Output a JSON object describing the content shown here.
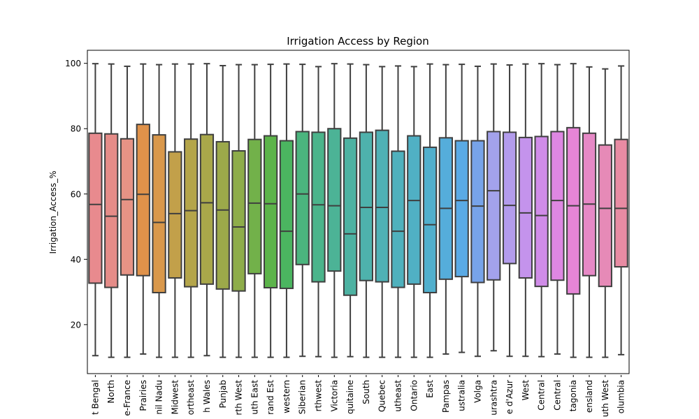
{
  "chart_data": {
    "type": "box",
    "title": "Irrigation Access by Region",
    "xlabel": "",
    "ylabel": "Irrigation_Access_%",
    "ylim": [
      5,
      104
    ],
    "yticks": [
      20,
      40,
      60,
      80,
      100
    ],
    "grid": false,
    "legend": "none",
    "categories": [
      {
        "label": "t Bengal",
        "color": "#e88a8e",
        "whisker_low": 10.5,
        "q1": 32.7,
        "median": 56.8,
        "q3": 78.6,
        "whisker_high": 99.9
      },
      {
        "label": "North",
        "color": "#e58c88",
        "whisker_low": 10.0,
        "q1": 31.4,
        "median": 53.2,
        "q3": 78.4,
        "whisker_high": 99.8
      },
      {
        "label": "e-France",
        "color": "#e69385",
        "whisker_low": 10.0,
        "q1": 35.2,
        "median": 58.3,
        "q3": 76.9,
        "whisker_high": 99.1
      },
      {
        "label": "Prairies",
        "color": "#e0924a",
        "whisker_low": 11.0,
        "q1": 35.0,
        "median": 59.9,
        "q3": 81.3,
        "whisker_high": 99.8
      },
      {
        "label": "nil Nadu",
        "color": "#d9984b",
        "whisker_low": 10.0,
        "q1": 29.8,
        "median": 51.3,
        "q3": 78.1,
        "whisker_high": 99.6
      },
      {
        "label": "Midwest",
        "color": "#c2a04a",
        "whisker_low": 10.0,
        "q1": 34.3,
        "median": 54.0,
        "q3": 72.9,
        "whisker_high": 99.8
      },
      {
        "label": "ortheast",
        "color": "#b4a54a",
        "whisker_low": 10.0,
        "q1": 31.6,
        "median": 54.9,
        "q3": 76.8,
        "whisker_high": 99.8
      },
      {
        "label": "h Wales",
        "color": "#a9a84a",
        "whisker_low": 10.5,
        "q1": 32.4,
        "median": 57.3,
        "q3": 78.2,
        "whisker_high": 99.9
      },
      {
        "label": "Punjab",
        "color": "#9ca94a",
        "whisker_low": 10.0,
        "q1": 30.9,
        "median": 55.1,
        "q3": 76.0,
        "whisker_high": 99.3
      },
      {
        "label": "rth West",
        "color": "#8ead4a",
        "whisker_low": 10.0,
        "q1": 30.3,
        "median": 49.9,
        "q3": 73.2,
        "whisker_high": 99.6
      },
      {
        "label": "uth East",
        "color": "#72b14a",
        "whisker_low": 10.0,
        "q1": 35.6,
        "median": 57.2,
        "q3": 76.7,
        "whisker_high": 99.6
      },
      {
        "label": "rand Est",
        "color": "#5cb44a",
        "whisker_low": 10.0,
        "q1": 31.3,
        "median": 57.0,
        "q3": 77.8,
        "whisker_high": 99.7
      },
      {
        "label": "western",
        "color": "#4bb560",
        "whisker_low": 10.0,
        "q1": 31.1,
        "median": 48.6,
        "q3": 76.3,
        "whisker_high": 99.8
      },
      {
        "label": "Siberian",
        "color": "#4bb57e",
        "whisker_low": 10.3,
        "q1": 38.4,
        "median": 60.0,
        "q3": 79.1,
        "whisker_high": 99.7
      },
      {
        "label": "rthwest",
        "color": "#4bb48b",
        "whisker_low": 10.2,
        "q1": 33.1,
        "median": 56.7,
        "q3": 78.9,
        "whisker_high": 99.0
      },
      {
        "label": "Victoria",
        "color": "#4cb396",
        "whisker_low": 10.0,
        "q1": 36.4,
        "median": 56.4,
        "q3": 80.0,
        "whisker_high": 99.9
      },
      {
        "label": "quitaine",
        "color": "#4db2a2",
        "whisker_low": 10.2,
        "q1": 29.0,
        "median": 47.8,
        "q3": 77.1,
        "whisker_high": 99.8
      },
      {
        "label": "South",
        "color": "#4eb2ac",
        "whisker_low": 10.0,
        "q1": 33.5,
        "median": 55.9,
        "q3": 78.9,
        "whisker_high": 99.6
      },
      {
        "label": "Quebec",
        "color": "#4fb1b5",
        "whisker_low": 10.0,
        "q1": 33.1,
        "median": 55.9,
        "q3": 79.5,
        "whisker_high": 99.0
      },
      {
        "label": "utheast",
        "color": "#4fb1bd",
        "whisker_low": 10.0,
        "q1": 31.4,
        "median": 48.6,
        "q3": 73.1,
        "whisker_high": 99.2
      },
      {
        "label": "Ontario",
        "color": "#50b0c4",
        "whisker_low": 10.0,
        "q1": 32.4,
        "median": 58.0,
        "q3": 77.8,
        "whisker_high": 99.0
      },
      {
        "label": "East",
        "color": "#51afcd",
        "whisker_low": 10.0,
        "q1": 29.8,
        "median": 50.6,
        "q3": 74.3,
        "whisker_high": 99.8
      },
      {
        "label": "Pampas",
        "color": "#55addb",
        "whisker_low": 11.0,
        "q1": 33.9,
        "median": 55.6,
        "q3": 77.2,
        "whisker_high": 99.6
      },
      {
        "label": "ustralia",
        "color": "#5aaae5",
        "whisker_low": 11.5,
        "q1": 34.7,
        "median": 58.0,
        "q3": 76.3,
        "whisker_high": 99.7
      },
      {
        "label": "Volga",
        "color": "#77a3e9",
        "whisker_low": 10.3,
        "q1": 32.9,
        "median": 56.3,
        "q3": 76.3,
        "whisker_high": 99.1
      },
      {
        "label": "urashtra",
        "color": "#a3a2ec",
        "whisker_low": 12.0,
        "q1": 33.7,
        "median": 61.0,
        "q3": 79.1,
        "whisker_high": 99.8
      },
      {
        "label": "e d'Azur",
        "color": "#b39cec",
        "whisker_low": 10.3,
        "q1": 38.7,
        "median": 56.5,
        "q3": 78.9,
        "whisker_high": 99.5
      },
      {
        "label": "West",
        "color": "#c493ec",
        "whisker_low": 10.3,
        "q1": 34.3,
        "median": 54.2,
        "q3": 77.3,
        "whisker_high": 99.8
      },
      {
        "label": "Central",
        "color": "#d08ce8",
        "whisker_low": 10.2,
        "q1": 31.7,
        "median": 53.4,
        "q3": 77.6,
        "whisker_high": 99.9
      },
      {
        "label": "Central",
        "color": "#de87e2",
        "whisker_low": 11.0,
        "q1": 33.6,
        "median": 58.0,
        "q3": 79.1,
        "whisker_high": 99.6
      },
      {
        "label": "tagonia",
        "color": "#e685d6",
        "whisker_low": 10.0,
        "q1": 29.4,
        "median": 56.4,
        "q3": 80.3,
        "whisker_high": 99.9
      },
      {
        "label": "ensland",
        "color": "#e689c6",
        "whisker_low": 10.0,
        "q1": 35.0,
        "median": 56.9,
        "q3": 78.6,
        "whisker_high": 98.9
      },
      {
        "label": "uth West",
        "color": "#e68ab7",
        "whisker_low": 10.0,
        "q1": 31.7,
        "median": 55.6,
        "q3": 75.0,
        "whisker_high": 98.3
      },
      {
        "label": "olumbia",
        "color": "#e88ba3",
        "whisker_low": 10.8,
        "q1": 37.7,
        "median": 55.6,
        "q3": 76.7,
        "whisker_high": 99.2
      }
    ]
  }
}
